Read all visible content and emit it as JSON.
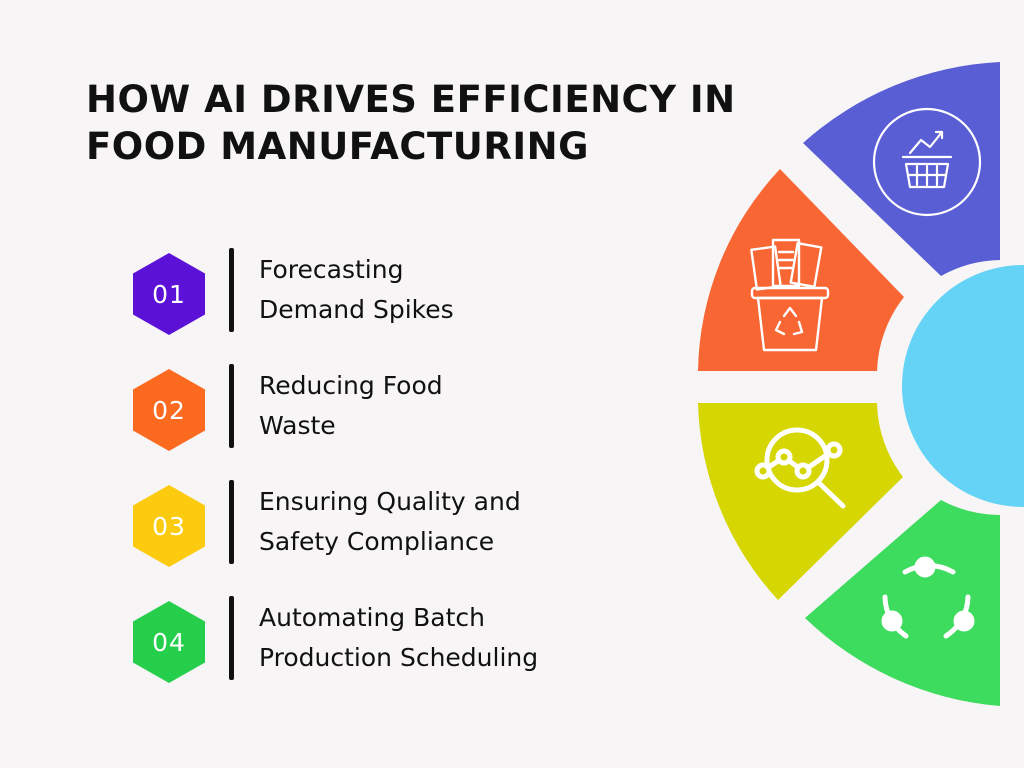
{
  "title": "HOW AI DRIVES EFFICIENCY IN FOOD MANUFACTURING",
  "items": [
    {
      "number": "01",
      "label_line1": "Forecasting",
      "label_line2": "Demand Spikes",
      "color": "#5b12d6"
    },
    {
      "number": "02",
      "label_line1": "Reducing Food",
      "label_line2": "Waste",
      "color": "#fb6a1e"
    },
    {
      "number": "03",
      "label_line1": "Ensuring Quality and",
      "label_line2": "Safety Compliance",
      "color": "#fcca0e"
    },
    {
      "number": "04",
      "label_line1": "Automating Batch",
      "label_line2": "Production Scheduling",
      "color": "#25cf4c"
    }
  ],
  "wheel": {
    "hub_color": "#64d3f6",
    "segments": [
      {
        "icon": "shopping-basket-growth-icon",
        "color": "#5a5ed4"
      },
      {
        "icon": "recycling-bin-icon",
        "color": "#f86633"
      },
      {
        "icon": "magnifier-analytics-icon",
        "color": "#d6d603"
      },
      {
        "icon": "process-cycle-icon",
        "color": "#3ddb5e"
      }
    ]
  }
}
